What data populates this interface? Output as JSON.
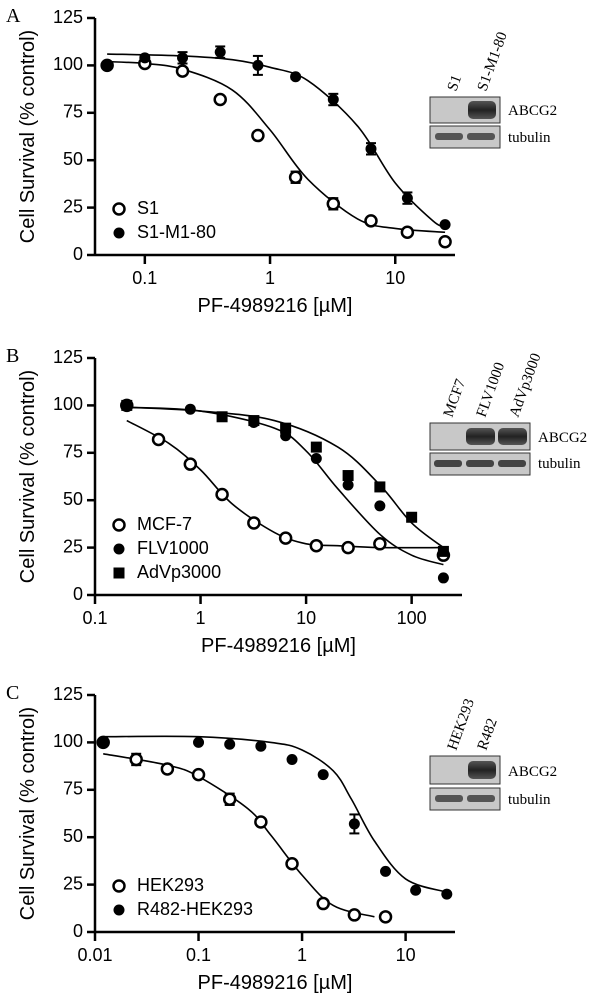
{
  "chart_data": [
    {
      "type": "scatter",
      "panel_label": "A",
      "xlabel": "PF-4989216 [µM]",
      "ylabel": "Cell Survival  (% control)",
      "log_x": true,
      "xlim": [
        0.04,
        30
      ],
      "xticks": [
        0.1,
        1,
        10
      ],
      "ylim": [
        0,
        125
      ],
      "yticks": [
        0,
        25,
        50,
        75,
        100,
        125
      ],
      "legend_position": "lower-left",
      "series": [
        {
          "name": "S1",
          "marker": "open-circle",
          "color": "#000000",
          "x": [
            0.05,
            0.1,
            0.2,
            0.4,
            0.8,
            1.6,
            3.2,
            6.4,
            12.5,
            25
          ],
          "values": [
            100,
            101,
            97,
            82,
            63,
            41,
            27,
            18,
            12,
            7
          ],
          "errors": [
            0,
            0,
            0,
            0,
            0,
            3,
            3,
            0,
            0,
            0
          ]
        },
        {
          "name": "S1-M1-80",
          "marker": "circle",
          "color": "#000000",
          "x": [
            0.05,
            0.1,
            0.2,
            0.4,
            0.8,
            1.6,
            3.2,
            6.4,
            12.5,
            25
          ],
          "values": [
            100,
            104,
            104,
            107,
            100,
            94,
            82,
            56,
            30,
            16
          ],
          "errors": [
            0,
            1,
            3,
            3,
            5,
            1,
            3,
            3,
            3,
            0
          ]
        }
      ],
      "fits": [
        {
          "x": [
            0.05,
            0.1,
            0.2,
            0.5,
            1,
            2,
            5,
            10,
            25
          ],
          "values": [
            102,
            101,
            98,
            87,
            66,
            40,
            19,
            14,
            12
          ]
        },
        {
          "x": [
            0.05,
            0.2,
            0.5,
            1,
            2,
            5,
            10,
            20,
            25
          ],
          "values": [
            106,
            105,
            103,
            99,
            92,
            68,
            38,
            18,
            15
          ]
        }
      ],
      "blot": {
        "lanes": [
          "S1",
          "S1-M1-80"
        ],
        "bands": [
          "ABCG2",
          "tubulin"
        ]
      }
    },
    {
      "type": "scatter",
      "panel_label": "B",
      "xlabel": "PF-4989216 [µM]",
      "ylabel": "Cell Survival  (% control)",
      "log_x": true,
      "xlim": [
        0.1,
        300
      ],
      "xticks": [
        0.1,
        1,
        10,
        100
      ],
      "ylim": [
        0,
        125
      ],
      "yticks": [
        0,
        25,
        50,
        75,
        100,
        125
      ],
      "legend_position": "lower-left",
      "series": [
        {
          "name": "MCF-7",
          "marker": "open-circle",
          "color": "#000000",
          "x": [
            0.2,
            0.4,
            0.8,
            1.6,
            3.2,
            6.4,
            12.5,
            25,
            50,
            200
          ],
          "values": [
            100,
            82,
            69,
            53,
            38,
            30,
            26,
            25,
            27,
            21
          ]
        },
        {
          "name": "FLV1000",
          "marker": "circle",
          "color": "#000000",
          "x": [
            0.2,
            0.8,
            3.2,
            6.4,
            12.5,
            25,
            50,
            200
          ],
          "values": [
            100,
            98,
            91,
            84,
            72,
            58,
            47,
            9
          ]
        },
        {
          "name": "AdVp3000",
          "marker": "square",
          "color": "#000000",
          "x": [
            0.2,
            1.6,
            3.2,
            6.4,
            12.5,
            25,
            50,
            100,
            200
          ],
          "values": [
            100,
            94,
            92,
            88,
            78,
            63,
            57,
            41,
            23
          ]
        }
      ],
      "fits": [
        {
          "x": [
            0.2,
            0.5,
            1,
            2,
            5,
            10,
            20,
            50,
            200
          ],
          "values": [
            92,
            80,
            66,
            48,
            33,
            27,
            26,
            25,
            25
          ]
        },
        {
          "x": [
            0.2,
            1,
            5,
            10,
            20,
            50,
            100,
            200
          ],
          "values": [
            99,
            97,
            88,
            76,
            56,
            32,
            21,
            16
          ]
        },
        {
          "x": [
            0.2,
            1,
            5,
            20,
            50,
            100,
            200
          ],
          "values": [
            99,
            97,
            92,
            78,
            58,
            38,
            25
          ]
        }
      ],
      "blot": {
        "lanes": [
          "MCF7",
          "FLV1000",
          "AdVp3000"
        ],
        "bands": [
          "ABCG2",
          "tubulin"
        ]
      }
    },
    {
      "type": "scatter",
      "panel_label": "C",
      "xlabel": "PF-4989216 [µM]",
      "ylabel": "Cell Survival  (% control)",
      "log_x": true,
      "xlim": [
        0.01,
        30
      ],
      "xticks": [
        0.01,
        0.1,
        1,
        10
      ],
      "ylim": [
        0,
        125
      ],
      "yticks": [
        0,
        25,
        50,
        75,
        100,
        125
      ],
      "legend_position": "lower-left",
      "series": [
        {
          "name": "HEK293",
          "marker": "open-circle",
          "color": "#000000",
          "x": [
            0.012,
            0.025,
            0.05,
            0.1,
            0.2,
            0.4,
            0.8,
            1.6,
            3.2,
            6.4
          ],
          "values": [
            100,
            91,
            86,
            83,
            70,
            58,
            36,
            15,
            9,
            8
          ],
          "errors": [
            0,
            3,
            2,
            0,
            3,
            0,
            0,
            0,
            0,
            0
          ]
        },
        {
          "name": "R482-HEK293",
          "marker": "circle",
          "color": "#000000",
          "x": [
            0.012,
            0.1,
            0.2,
            0.4,
            0.8,
            1.6,
            3.2,
            6.4,
            12.5,
            25
          ],
          "values": [
            100,
            100,
            99,
            98,
            91,
            83,
            57,
            32,
            22,
            20
          ],
          "errors": [
            0,
            0,
            0,
            0,
            0,
            0,
            5,
            0,
            0,
            0
          ]
        }
      ],
      "fits": [
        {
          "x": [
            0.012,
            0.05,
            0.1,
            0.3,
            0.5,
            1,
            2,
            5
          ],
          "values": [
            94,
            88,
            82,
            65,
            51,
            30,
            14,
            8
          ]
        },
        {
          "x": [
            0.012,
            0.1,
            0.5,
            1,
            2,
            3,
            5,
            10,
            25
          ],
          "values": [
            103,
            103,
            100,
            96,
            85,
            70,
            48,
            28,
            21
          ]
        }
      ],
      "blot": {
        "lanes": [
          "HEK293",
          "R482"
        ],
        "bands": [
          "ABCG2",
          "tubulin"
        ]
      }
    }
  ]
}
